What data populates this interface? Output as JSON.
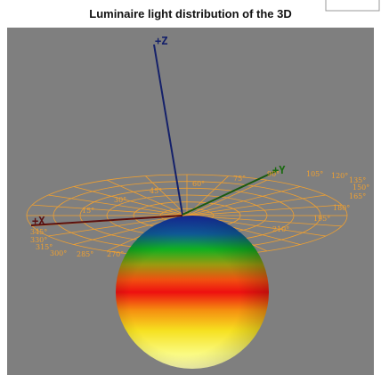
{
  "title": "Luminaire light distribution of the 3D",
  "axes": {
    "z": "+Z",
    "x": "+X",
    "y": "+Y"
  },
  "angle_labels": [
    "15°",
    "30°",
    "45°",
    "60°",
    "75°",
    "90°",
    "105°",
    "120°",
    "135°",
    "150°",
    "165°",
    "180°",
    "195°",
    "210°",
    "270°",
    "285°",
    "300°",
    "315°",
    "330°",
    "345°"
  ]
}
